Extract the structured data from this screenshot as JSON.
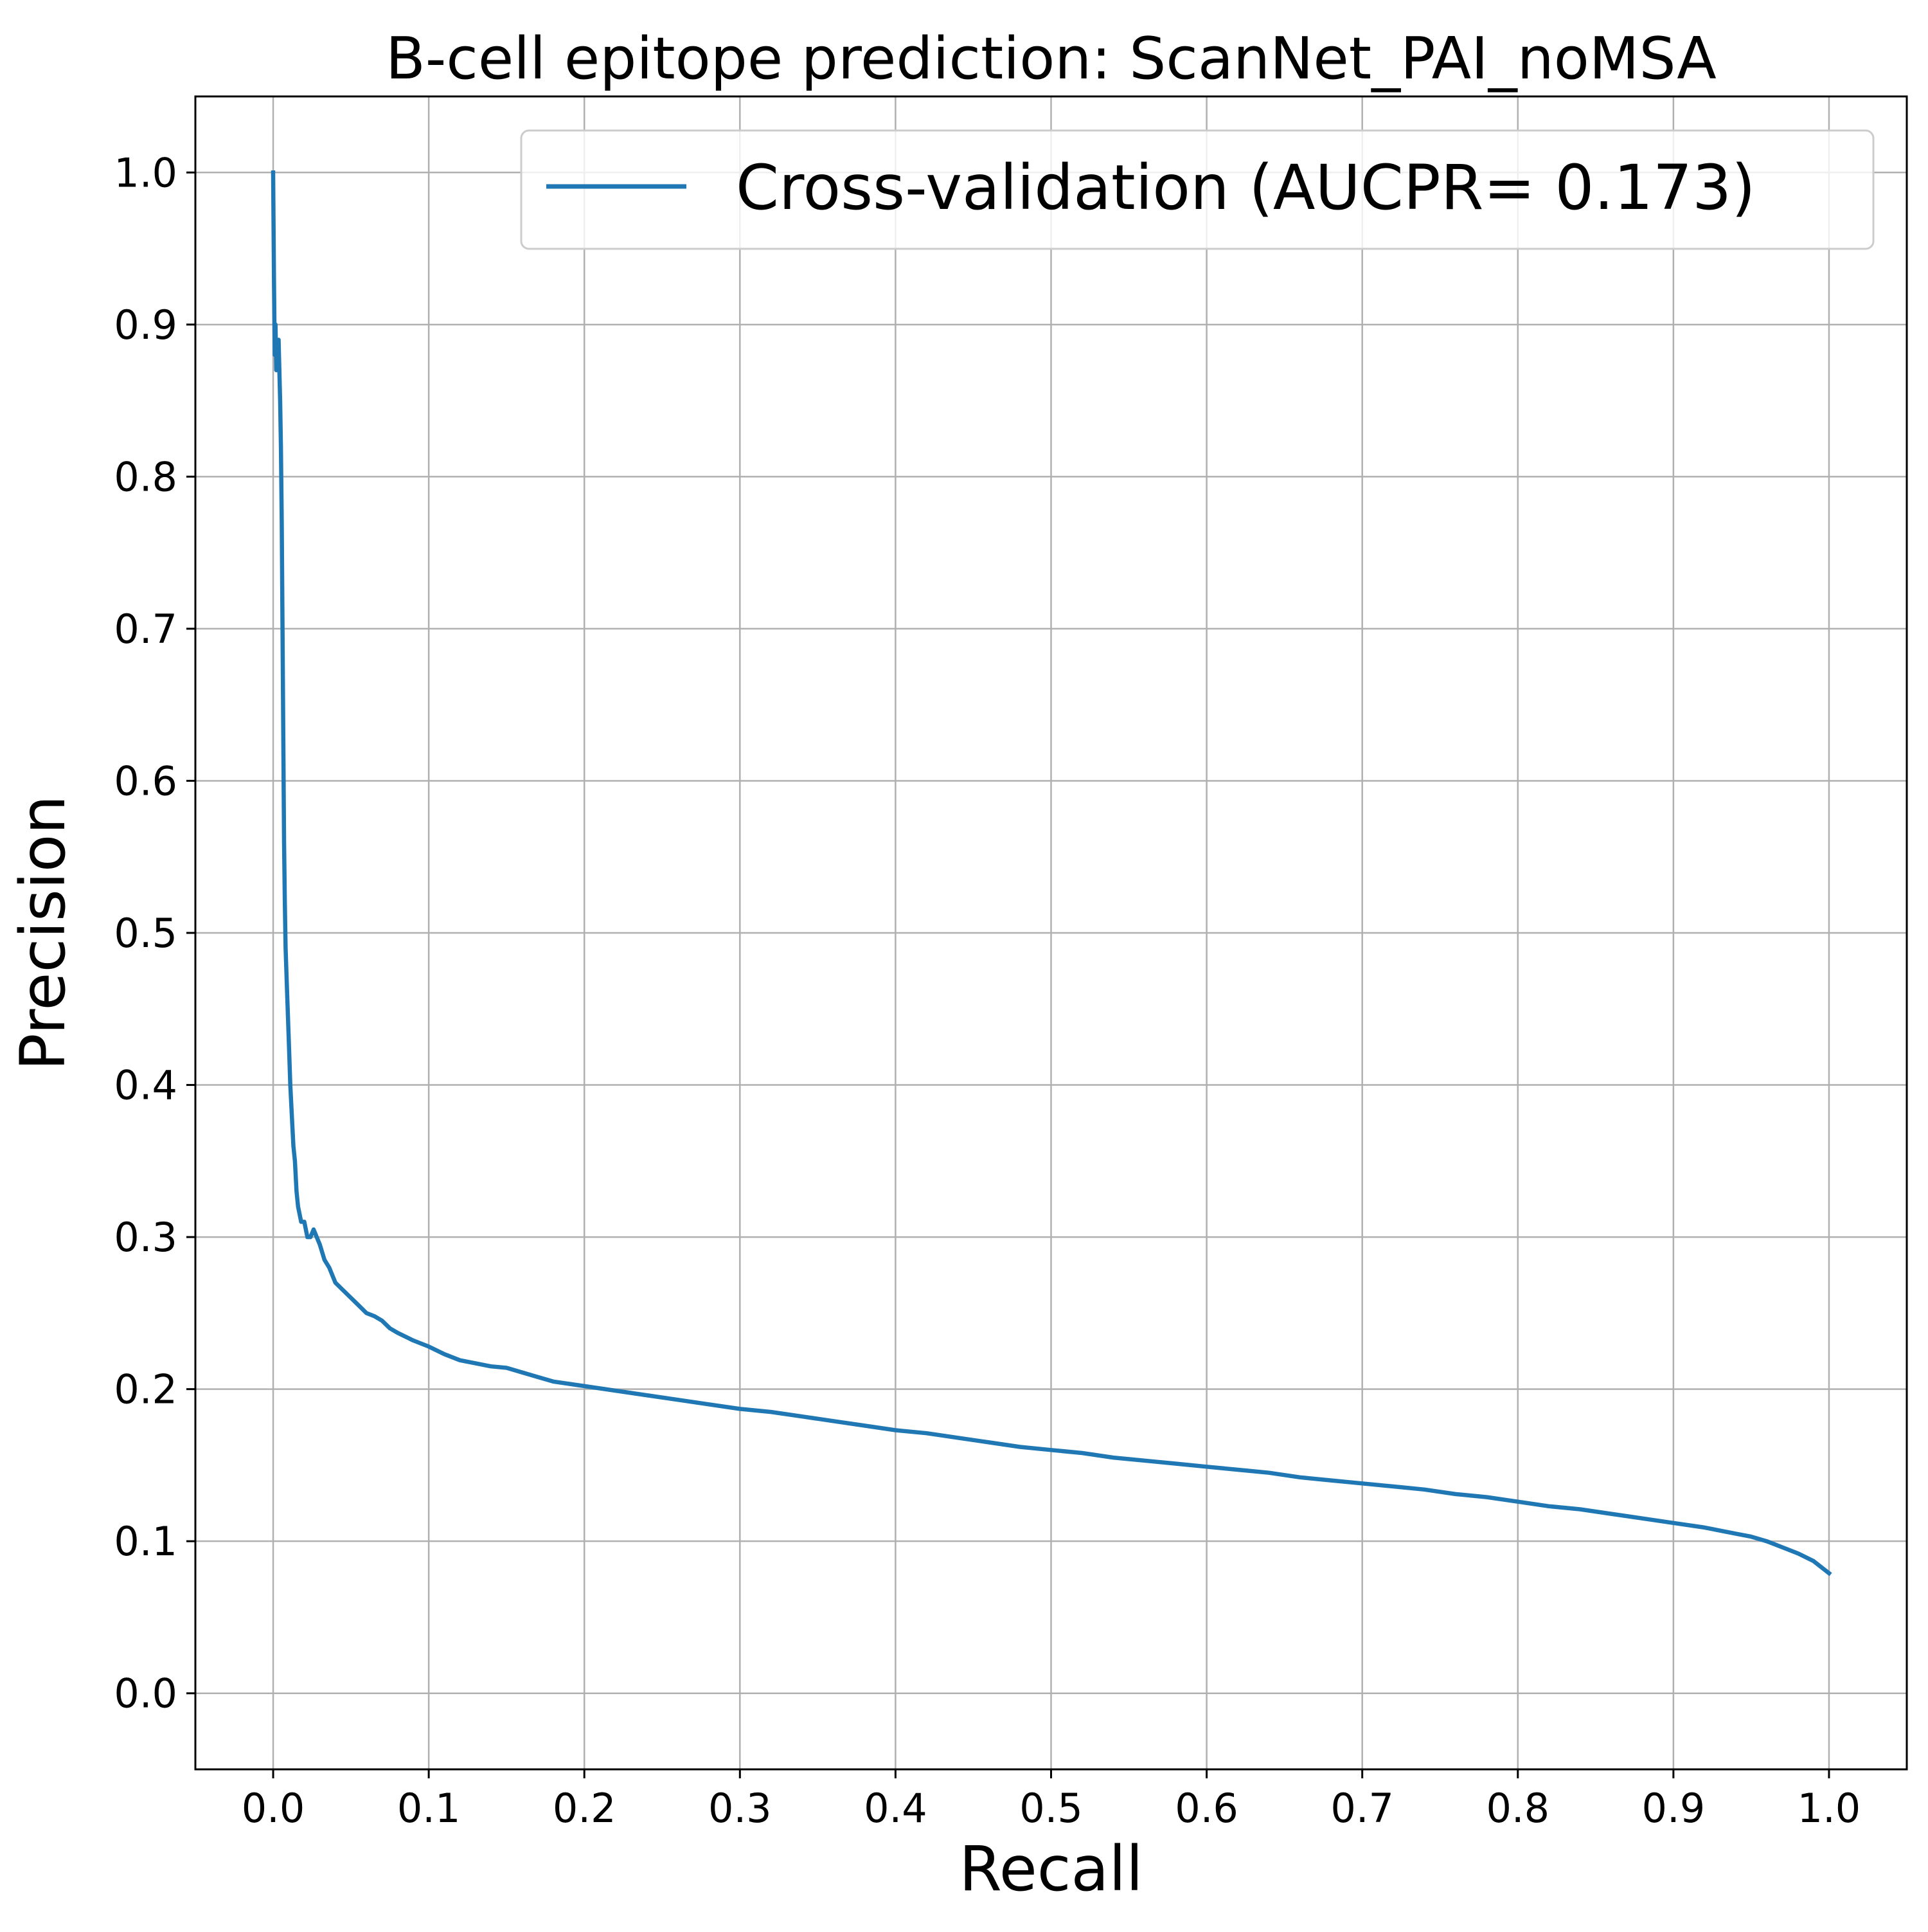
{
  "chart_data": {
    "type": "line",
    "title": "B-cell epitope prediction: ScanNet_PAI_noMSA",
    "xlabel": "Recall",
    "ylabel": "Precision",
    "xlim": [
      -0.05,
      1.05
    ],
    "ylim": [
      -0.05,
      1.05
    ],
    "xticks": [
      "0.0",
      "0.1",
      "0.2",
      "0.3",
      "0.4",
      "0.5",
      "0.6",
      "0.7",
      "0.8",
      "0.9",
      "1.0"
    ],
    "yticks": [
      "0.0",
      "0.1",
      "0.2",
      "0.3",
      "0.4",
      "0.5",
      "0.6",
      "0.7",
      "0.8",
      "0.9",
      "1.0"
    ],
    "grid": true,
    "legend_position": "top-right",
    "series": [
      {
        "name": "Cross-validation (AUCPR= 0.173)",
        "color": "#1f77b4",
        "x": [
          0.0,
          0.0005,
          0.001,
          0.0015,
          0.002,
          0.0025,
          0.003,
          0.0035,
          0.004,
          0.0045,
          0.005,
          0.0055,
          0.006,
          0.0065,
          0.007,
          0.0075,
          0.008,
          0.009,
          0.01,
          0.011,
          0.012,
          0.013,
          0.014,
          0.015,
          0.016,
          0.018,
          0.02,
          0.022,
          0.024,
          0.026,
          0.028,
          0.03,
          0.033,
          0.036,
          0.04,
          0.045,
          0.05,
          0.055,
          0.06,
          0.065,
          0.07,
          0.075,
          0.08,
          0.09,
          0.1,
          0.11,
          0.12,
          0.13,
          0.14,
          0.15,
          0.16,
          0.17,
          0.18,
          0.2,
          0.22,
          0.24,
          0.26,
          0.28,
          0.3,
          0.32,
          0.34,
          0.36,
          0.38,
          0.4,
          0.42,
          0.44,
          0.46,
          0.48,
          0.5,
          0.52,
          0.54,
          0.56,
          0.58,
          0.6,
          0.62,
          0.64,
          0.66,
          0.68,
          0.7,
          0.72,
          0.74,
          0.76,
          0.78,
          0.8,
          0.82,
          0.84,
          0.86,
          0.88,
          0.9,
          0.92,
          0.94,
          0.95,
          0.96,
          0.97,
          0.98,
          0.99,
          0.995,
          1.0
        ],
        "y": [
          1.0,
          0.93,
          0.88,
          0.9,
          0.87,
          0.89,
          0.88,
          0.89,
          0.87,
          0.85,
          0.82,
          0.77,
          0.7,
          0.63,
          0.56,
          0.52,
          0.49,
          0.46,
          0.43,
          0.4,
          0.38,
          0.36,
          0.35,
          0.33,
          0.32,
          0.31,
          0.31,
          0.3,
          0.3,
          0.305,
          0.3,
          0.295,
          0.285,
          0.28,
          0.27,
          0.265,
          0.26,
          0.255,
          0.25,
          0.248,
          0.245,
          0.24,
          0.237,
          0.232,
          0.228,
          0.223,
          0.219,
          0.217,
          0.215,
          0.214,
          0.211,
          0.208,
          0.205,
          0.202,
          0.199,
          0.196,
          0.193,
          0.19,
          0.187,
          0.185,
          0.182,
          0.179,
          0.176,
          0.173,
          0.171,
          0.168,
          0.165,
          0.162,
          0.16,
          0.158,
          0.155,
          0.153,
          0.151,
          0.149,
          0.147,
          0.145,
          0.142,
          0.14,
          0.138,
          0.136,
          0.134,
          0.131,
          0.129,
          0.126,
          0.123,
          0.121,
          0.118,
          0.115,
          0.112,
          0.109,
          0.105,
          0.103,
          0.1,
          0.096,
          0.092,
          0.087,
          0.083,
          0.079
        ]
      }
    ]
  }
}
